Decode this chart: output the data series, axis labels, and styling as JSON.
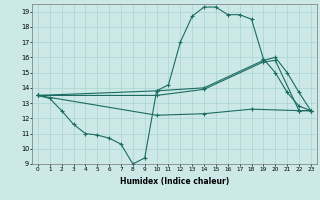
{
  "xlabel": "Humidex (Indice chaleur)",
  "bg_color": "#cce9e7",
  "grid_color": "#aad4d2",
  "line_color": "#1a6b62",
  "xlim": [
    -0.5,
    23.5
  ],
  "ylim": [
    9,
    19.5
  ],
  "yticks": [
    9,
    10,
    11,
    12,
    13,
    14,
    15,
    16,
    17,
    18,
    19
  ],
  "xticks": [
    0,
    1,
    2,
    3,
    4,
    5,
    6,
    7,
    8,
    9,
    10,
    11,
    12,
    13,
    14,
    15,
    16,
    17,
    18,
    19,
    20,
    21,
    22,
    23
  ],
  "line1_x": [
    0,
    1,
    2,
    3,
    4,
    5,
    6,
    7,
    8,
    9,
    10,
    11,
    12,
    13,
    14,
    15,
    16,
    17,
    18,
    19,
    20,
    21,
    22,
    23
  ],
  "line1_y": [
    13.5,
    13.3,
    12.5,
    11.6,
    11.0,
    10.9,
    10.7,
    10.3,
    9.0,
    9.4,
    13.8,
    14.2,
    17.0,
    18.7,
    19.3,
    19.3,
    18.8,
    18.8,
    18.5,
    15.9,
    15.0,
    13.7,
    12.8,
    12.5
  ],
  "line2_x": [
    0,
    10,
    14,
    19,
    20,
    21,
    22,
    23
  ],
  "line2_y": [
    13.5,
    13.8,
    14.0,
    15.8,
    16.0,
    15.0,
    13.7,
    12.5
  ],
  "line3_x": [
    0,
    10,
    14,
    19,
    20,
    22,
    23
  ],
  "line3_y": [
    13.5,
    13.5,
    13.9,
    15.7,
    15.8,
    12.5,
    12.5
  ],
  "line4_x": [
    0,
    10,
    14,
    18,
    22,
    23
  ],
  "line4_y": [
    13.5,
    12.2,
    12.3,
    12.6,
    12.5,
    12.5
  ]
}
